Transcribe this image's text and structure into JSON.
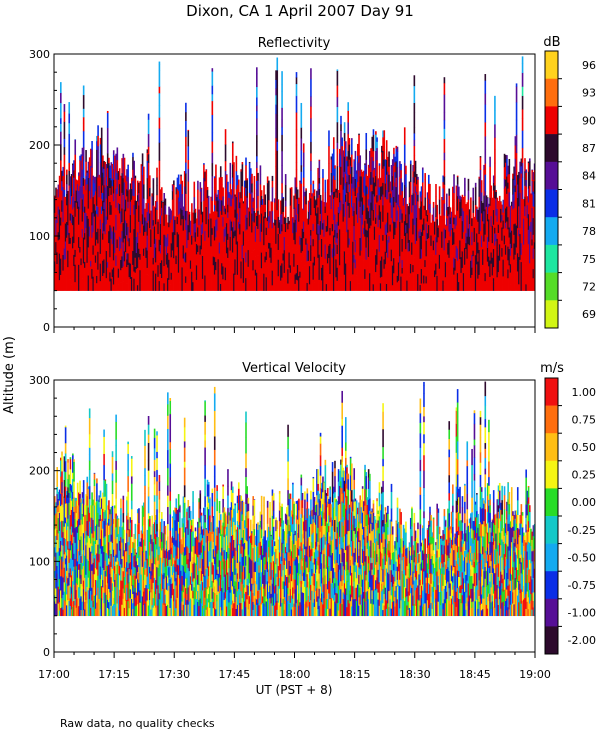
{
  "figure": {
    "title": "Dixon, CA   1 April 2007   Day  91",
    "ylabel": "Altitude  (m)",
    "xlabel": "UT  (PST + 8)",
    "footnote": "Raw data, no quality checks"
  },
  "chart_data": [
    {
      "type": "heatmap",
      "title": "Reflectivity",
      "x_ticks": [
        "17:00",
        "17:15",
        "17:30",
        "17:45",
        "18:00",
        "18:15",
        "18:30",
        "18:45",
        "19:00"
      ],
      "xlim_hours": [
        17.0,
        19.0
      ],
      "y_ticks": [
        0,
        100,
        200,
        300
      ],
      "ylim": [
        0,
        300
      ],
      "colorbar": {
        "unit": "dB",
        "ticks": [
          "96",
          "93",
          "90",
          "87",
          "84",
          "81",
          "78",
          "75",
          "72",
          "69"
        ],
        "colors": [
          "#ffd21e",
          "#ff6e0e",
          "#ee0000",
          "#2d0a2d",
          "#560e96",
          "#0a2ee6",
          "#14aaf0",
          "#1ee6a0",
          "#55dc28",
          "#d2f514"
        ]
      },
      "data_floor_m": 40,
      "columns": 400,
      "seed": 7
    },
    {
      "type": "heatmap",
      "title": "Vertical Velocity",
      "x_ticks": [
        "17:00",
        "17:15",
        "17:30",
        "17:45",
        "18:00",
        "18:15",
        "18:30",
        "18:45",
        "19:00"
      ],
      "xlim_hours": [
        17.0,
        19.0
      ],
      "y_ticks": [
        0,
        100,
        200,
        300
      ],
      "ylim": [
        0,
        300
      ],
      "colorbar": {
        "unit": "m/s",
        "ticks": [
          "1.00",
          "0.75",
          "0.50",
          "0.25",
          "0.00",
          "-0.25",
          "-0.50",
          "-0.75",
          "-1.00",
          "-2.00"
        ],
        "colors": [
          "#f01010",
          "#ff6e0e",
          "#ffbe14",
          "#f5f514",
          "#28dc28",
          "#14c8c8",
          "#14aaf0",
          "#0a2ee6",
          "#560e96",
          "#2d0a2d"
        ]
      },
      "data_floor_m": 40,
      "columns": 400,
      "seed": 13
    }
  ]
}
